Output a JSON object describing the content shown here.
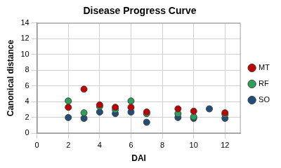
{
  "chart_data": {
    "type": "scatter",
    "title": "Disease Progress Curve",
    "x_label": "DAI",
    "y_label": "Canonical distance",
    "series": [
      {
        "name": "MT",
        "color": "#c00000",
        "x": [
          2,
          3,
          4,
          5,
          6,
          7,
          9,
          10,
          12
        ],
        "values": [
          3.3,
          5.6,
          3.6,
          3.3,
          3.3,
          2.7,
          3.1,
          2.8,
          2.6
        ]
      },
      {
        "name": "RF",
        "color": "#2ca05a",
        "x": [
          2,
          3,
          4,
          5,
          6,
          7,
          9,
          10,
          12
        ],
        "values": [
          4.1,
          2.6,
          3.4,
          3.0,
          4.1,
          2.5,
          2.5,
          2.1,
          2.4
        ]
      },
      {
        "name": "SO",
        "color": "#1f4e79",
        "x": [
          2,
          3,
          4,
          5,
          6,
          7,
          9,
          10,
          11,
          12
        ],
        "values": [
          2.0,
          1.9,
          2.7,
          2.5,
          2.7,
          1.4,
          2.0,
          1.9,
          3.1,
          1.9
        ]
      }
    ],
    "xlim": [
      0,
      13
    ],
    "xticks": [
      0,
      2,
      4,
      6,
      8,
      10,
      12
    ],
    "ylim": [
      0,
      14
    ],
    "yticks": [
      0,
      2,
      4,
      6,
      8,
      10,
      12,
      14
    ],
    "grid": true,
    "legend": "right",
    "marker": "circle"
  }
}
